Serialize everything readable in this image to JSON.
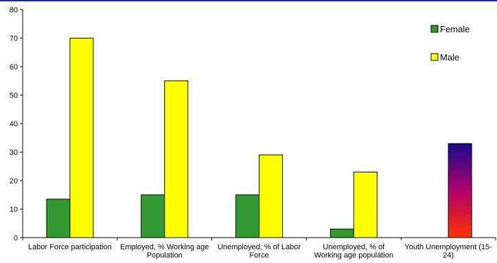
{
  "chart_data": {
    "type": "bar",
    "categories": [
      [
        "Labor Force participation"
      ],
      [
        "Employed, % Working age",
        "Population"
      ],
      [
        "Unemployed, % of Labor",
        "Force"
      ],
      [
        "Unemployed, % of",
        "Working age population"
      ],
      [
        "Youth Unemployment (15-",
        "24)"
      ]
    ],
    "series": [
      {
        "name": "Female",
        "color": "#339933",
        "values": [
          13.5,
          15,
          15,
          3,
          null
        ]
      },
      {
        "name": "Male",
        "color": "#ffff00",
        "values": [
          70,
          55,
          29,
          23,
          null
        ]
      }
    ],
    "extra_bars": [
      {
        "category_index": 4,
        "value": 33,
        "gradient": [
          "#ff3300",
          "#b0006a",
          "#1a0a8c"
        ]
      }
    ],
    "ylim": [
      0,
      80
    ],
    "yticks": [
      0,
      10,
      20,
      30,
      40,
      50,
      60,
      70,
      80
    ],
    "legend_position": "top-right",
    "grid": false,
    "xlabel": "",
    "ylabel": ""
  }
}
